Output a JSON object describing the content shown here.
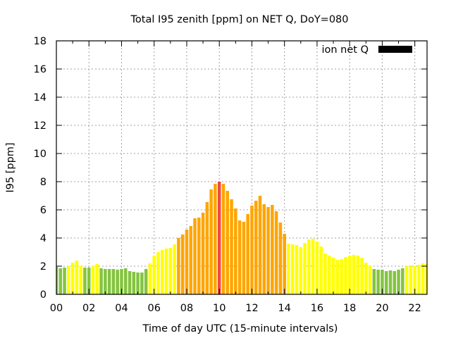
{
  "chart_data": {
    "type": "bar",
    "title": "Total I95 zenith [ppm] on NET Q, DoY=080",
    "xlabel": "Time of day UTC (15-minute intervals)",
    "ylabel": "I95 [ppm]",
    "xlim": [
      0,
      22.75
    ],
    "ylim": [
      0,
      18
    ],
    "grid": true,
    "legend": {
      "label": "ion net Q",
      "position": "top-right",
      "swatch_color": "#000000"
    },
    "xticks": [
      {
        "value": 0,
        "label": "00"
      },
      {
        "value": 2,
        "label": "02"
      },
      {
        "value": 4,
        "label": "04"
      },
      {
        "value": 6,
        "label": "06"
      },
      {
        "value": 8,
        "label": "08"
      },
      {
        "value": 10,
        "label": "10"
      },
      {
        "value": 12,
        "label": "12"
      },
      {
        "value": 14,
        "label": "14"
      },
      {
        "value": 16,
        "label": "16"
      },
      {
        "value": 18,
        "label": "18"
      },
      {
        "value": 20,
        "label": "20"
      },
      {
        "value": 22,
        "label": "22"
      }
    ],
    "yticks": [
      {
        "value": 0,
        "label": "0"
      },
      {
        "value": 2,
        "label": "2"
      },
      {
        "value": 4,
        "label": "4"
      },
      {
        "value": 6,
        "label": "6"
      },
      {
        "value": 8,
        "label": "8"
      },
      {
        "value": 10,
        "label": "10"
      },
      {
        "value": 12,
        "label": "12"
      },
      {
        "value": 14,
        "label": "14"
      },
      {
        "value": 16,
        "label": "16"
      },
      {
        "value": 18,
        "label": "18"
      }
    ],
    "interval_hours": 0.25,
    "colors": {
      "low": "#84c440",
      "medium": "#ffff00",
      "high": "#ffa500",
      "peak": "#f04848"
    },
    "series": [
      {
        "name": "ion net Q",
        "values": [
          1.95,
          1.85,
          1.9,
          2.0,
          2.25,
          2.4,
          2.0,
          1.9,
          1.9,
          2.05,
          2.15,
          1.85,
          1.8,
          1.8,
          1.8,
          1.75,
          1.8,
          1.85,
          1.65,
          1.6,
          1.55,
          1.55,
          1.8,
          2.2,
          2.75,
          3.0,
          3.15,
          3.25,
          3.3,
          3.55,
          4.0,
          4.25,
          4.6,
          4.85,
          5.4,
          5.45,
          5.8,
          6.55,
          7.45,
          7.85,
          8.0,
          7.85,
          7.35,
          6.75,
          6.1,
          5.25,
          5.15,
          5.7,
          6.3,
          6.65,
          7.0,
          6.4,
          6.2,
          6.35,
          5.9,
          5.1,
          4.3,
          3.6,
          3.55,
          3.5,
          3.35,
          3.65,
          3.9,
          3.95,
          3.75,
          3.4,
          2.9,
          2.75,
          2.6,
          2.45,
          2.5,
          2.65,
          2.75,
          2.8,
          2.75,
          2.6,
          2.25,
          2.05,
          1.8,
          1.75,
          1.75,
          1.65,
          1.7,
          1.65,
          1.75,
          1.85,
          2.0,
          2.05,
          2.0,
          2.1,
          2.2,
          2.15
        ],
        "level": [
          "low",
          "low",
          "low",
          "medium",
          "medium",
          "medium",
          "medium",
          "low",
          "low",
          "medium",
          "medium",
          "low",
          "low",
          "low",
          "low",
          "low",
          "low",
          "low",
          "low",
          "low",
          "low",
          "low",
          "low",
          "medium",
          "medium",
          "medium",
          "medium",
          "medium",
          "medium",
          "medium",
          "high",
          "high",
          "high",
          "high",
          "high",
          "high",
          "high",
          "high",
          "high",
          "high",
          "peak",
          "high",
          "high",
          "high",
          "high",
          "high",
          "high",
          "high",
          "high",
          "high",
          "high",
          "high",
          "high",
          "high",
          "high",
          "high",
          "high",
          "medium",
          "medium",
          "medium",
          "medium",
          "medium",
          "medium",
          "medium",
          "medium",
          "medium",
          "medium",
          "medium",
          "medium",
          "medium",
          "medium",
          "medium",
          "medium",
          "medium",
          "medium",
          "medium",
          "medium",
          "medium",
          "low",
          "low",
          "low",
          "low",
          "low",
          "low",
          "low",
          "low",
          "medium",
          "medium",
          "medium",
          "medium",
          "medium",
          "medium"
        ]
      }
    ]
  }
}
